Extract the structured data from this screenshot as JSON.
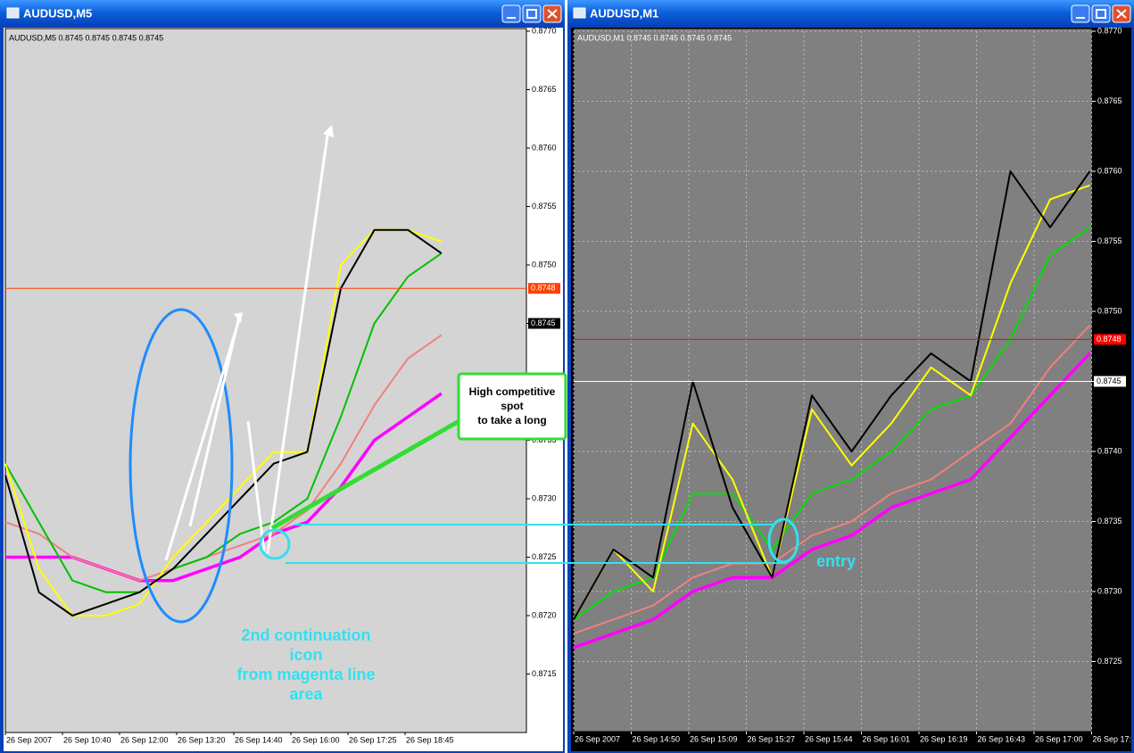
{
  "chart_data": [
    {
      "type": "line",
      "title": "AUDUSD,M5",
      "header": "AUDUSD,M5  0.8745 0.8745 0.8745 0.8745",
      "background": "#d4d4d4",
      "grid": false,
      "ylim": [
        0.871,
        0.877
      ],
      "yticks": [
        0.8715,
        {
          "value": 0.872,
          "label": "0.8720"
        },
        0.8725,
        {
          "value": 0.873,
          "label": "0.8730"
        },
        0.8735,
        {
          "value": 0.874,
          "label": "0.8740"
        },
        0.8745,
        {
          "value": 0.875,
          "label": "0.8750"
        },
        0.8755,
        {
          "value": 0.876,
          "label": "0.8760"
        },
        0.8765,
        {
          "value": 0.877,
          "label": "0.8770"
        }
      ],
      "x_tick_labels": [
        "26 Sep 2007",
        "26 Sep 10:40",
        "26 Sep 12:00",
        "26 Sep 13:20",
        "26 Sep 14:40",
        "26 Sep 16:00",
        "26 Sep 17:25",
        "26 Sep 18:45"
      ],
      "price_lines": [
        {
          "value": 0.8748,
          "color": "#ff4000",
          "box": "#ff4000",
          "show_line": true
        },
        {
          "value": 0.8745,
          "color": "#000000",
          "box": "#000000",
          "show_line": false
        }
      ],
      "series": [
        {
          "color": "#ff00ff",
          "values": [
            0.8725,
            0.8725,
            0.8725,
            0.8724,
            0.8723,
            0.8723,
            0.8724,
            0.8725,
            0.8727,
            0.8728,
            0.8731,
            0.8735,
            0.8737,
            0.8739
          ]
        },
        {
          "color": "#f08080",
          "values": [
            0.8728,
            0.8727,
            0.8725,
            0.8724,
            0.8723,
            0.8724,
            0.8725,
            0.8726,
            0.8727,
            0.8729,
            0.8733,
            0.8738,
            0.8742,
            0.8744
          ]
        },
        {
          "color": "#00c000",
          "values": [
            0.8733,
            0.8728,
            0.8723,
            0.8722,
            0.8722,
            0.8724,
            0.8725,
            0.8727,
            0.8728,
            0.873,
            0.8737,
            0.8745,
            0.8749,
            0.8751
          ]
        },
        {
          "color": "#ffff00",
          "values": [
            0.8733,
            0.8724,
            0.872,
            0.872,
            0.8721,
            0.8725,
            0.8728,
            0.8731,
            0.8734,
            0.8734,
            0.875,
            0.8753,
            0.8753,
            0.8752
          ]
        },
        {
          "color": "#000000",
          "values": [
            0.8732,
            0.8722,
            0.872,
            0.8721,
            0.8722,
            0.8724,
            0.8727,
            0.873,
            0.8733,
            0.8734,
            0.8748,
            0.8753,
            0.8753,
            0.8751
          ]
        }
      ]
    },
    {
      "type": "line",
      "title": "AUDUSD,M1",
      "header": "AUDUSD,M1  0.8745 0.8745 0.8745 0.8745",
      "background": "#808080",
      "grid": true,
      "ylim": [
        0.872,
        0.877
      ],
      "yticks": [
        0.8725,
        {
          "value": 0.873,
          "label": "0.8730"
        },
        0.8735,
        {
          "value": 0.874,
          "label": "0.8740"
        },
        0.8745,
        {
          "value": 0.875,
          "label": "0.8750"
        },
        0.8755,
        {
          "value": 0.876,
          "label": "0.8760"
        },
        0.8765,
        {
          "value": 0.877,
          "label": "0.8770"
        }
      ],
      "x_tick_labels": [
        "26 Sep 2007",
        "26 Sep 14:50",
        "26 Sep 15:09",
        "26 Sep 15:27",
        "26 Sep 15:44",
        "26 Sep 16:01",
        "26 Sep 16:19",
        "26 Sep 16:43",
        "26 Sep 17:00",
        "26 Sep 17:"
      ],
      "price_lines": [
        {
          "value": 0.8748,
          "color": "#ff0000",
          "box": "#ff0000",
          "show_line": true
        },
        {
          "value": 0.8745,
          "color": "#ffffff",
          "box": "#ffffff",
          "show_line": true
        }
      ],
      "series": [
        {
          "color": "#ff00ff",
          "values": [
            0.8726,
            0.8727,
            0.8728,
            0.873,
            0.8731,
            0.8731,
            0.8733,
            0.8734,
            0.8736,
            0.8737,
            0.8738,
            0.8741,
            0.8744,
            0.8747
          ]
        },
        {
          "color": "#f08080",
          "values": [
            0.8727,
            0.8728,
            0.8729,
            0.8731,
            0.8732,
            0.8732,
            0.8734,
            0.8735,
            0.8737,
            0.8738,
            0.874,
            0.8742,
            0.8746,
            0.8749
          ]
        },
        {
          "color": "#00e000",
          "values": [
            0.8728,
            0.873,
            0.8731,
            0.8737,
            0.8737,
            0.8733,
            0.8737,
            0.8738,
            0.874,
            0.8743,
            0.8744,
            0.8748,
            0.8754,
            0.8756
          ]
        },
        {
          "color": "#ffff00",
          "values": [
            0.8728,
            0.8733,
            0.873,
            0.8742,
            0.8738,
            0.8731,
            0.8743,
            0.8739,
            0.8742,
            0.8746,
            0.8744,
            0.8752,
            0.8758,
            0.8759
          ]
        },
        {
          "color": "#000000",
          "values": [
            0.8728,
            0.8733,
            0.8731,
            0.8745,
            0.8736,
            0.8731,
            0.8744,
            0.874,
            0.8744,
            0.8747,
            0.8745,
            0.876,
            0.8756,
            0.876
          ]
        }
      ]
    }
  ],
  "annotations": {
    "callout": [
      "High competitive",
      "spot",
      "to take a long"
    ],
    "note": [
      "2nd continuation",
      "icon",
      "from magenta line",
      "area"
    ],
    "entry": "entry"
  }
}
